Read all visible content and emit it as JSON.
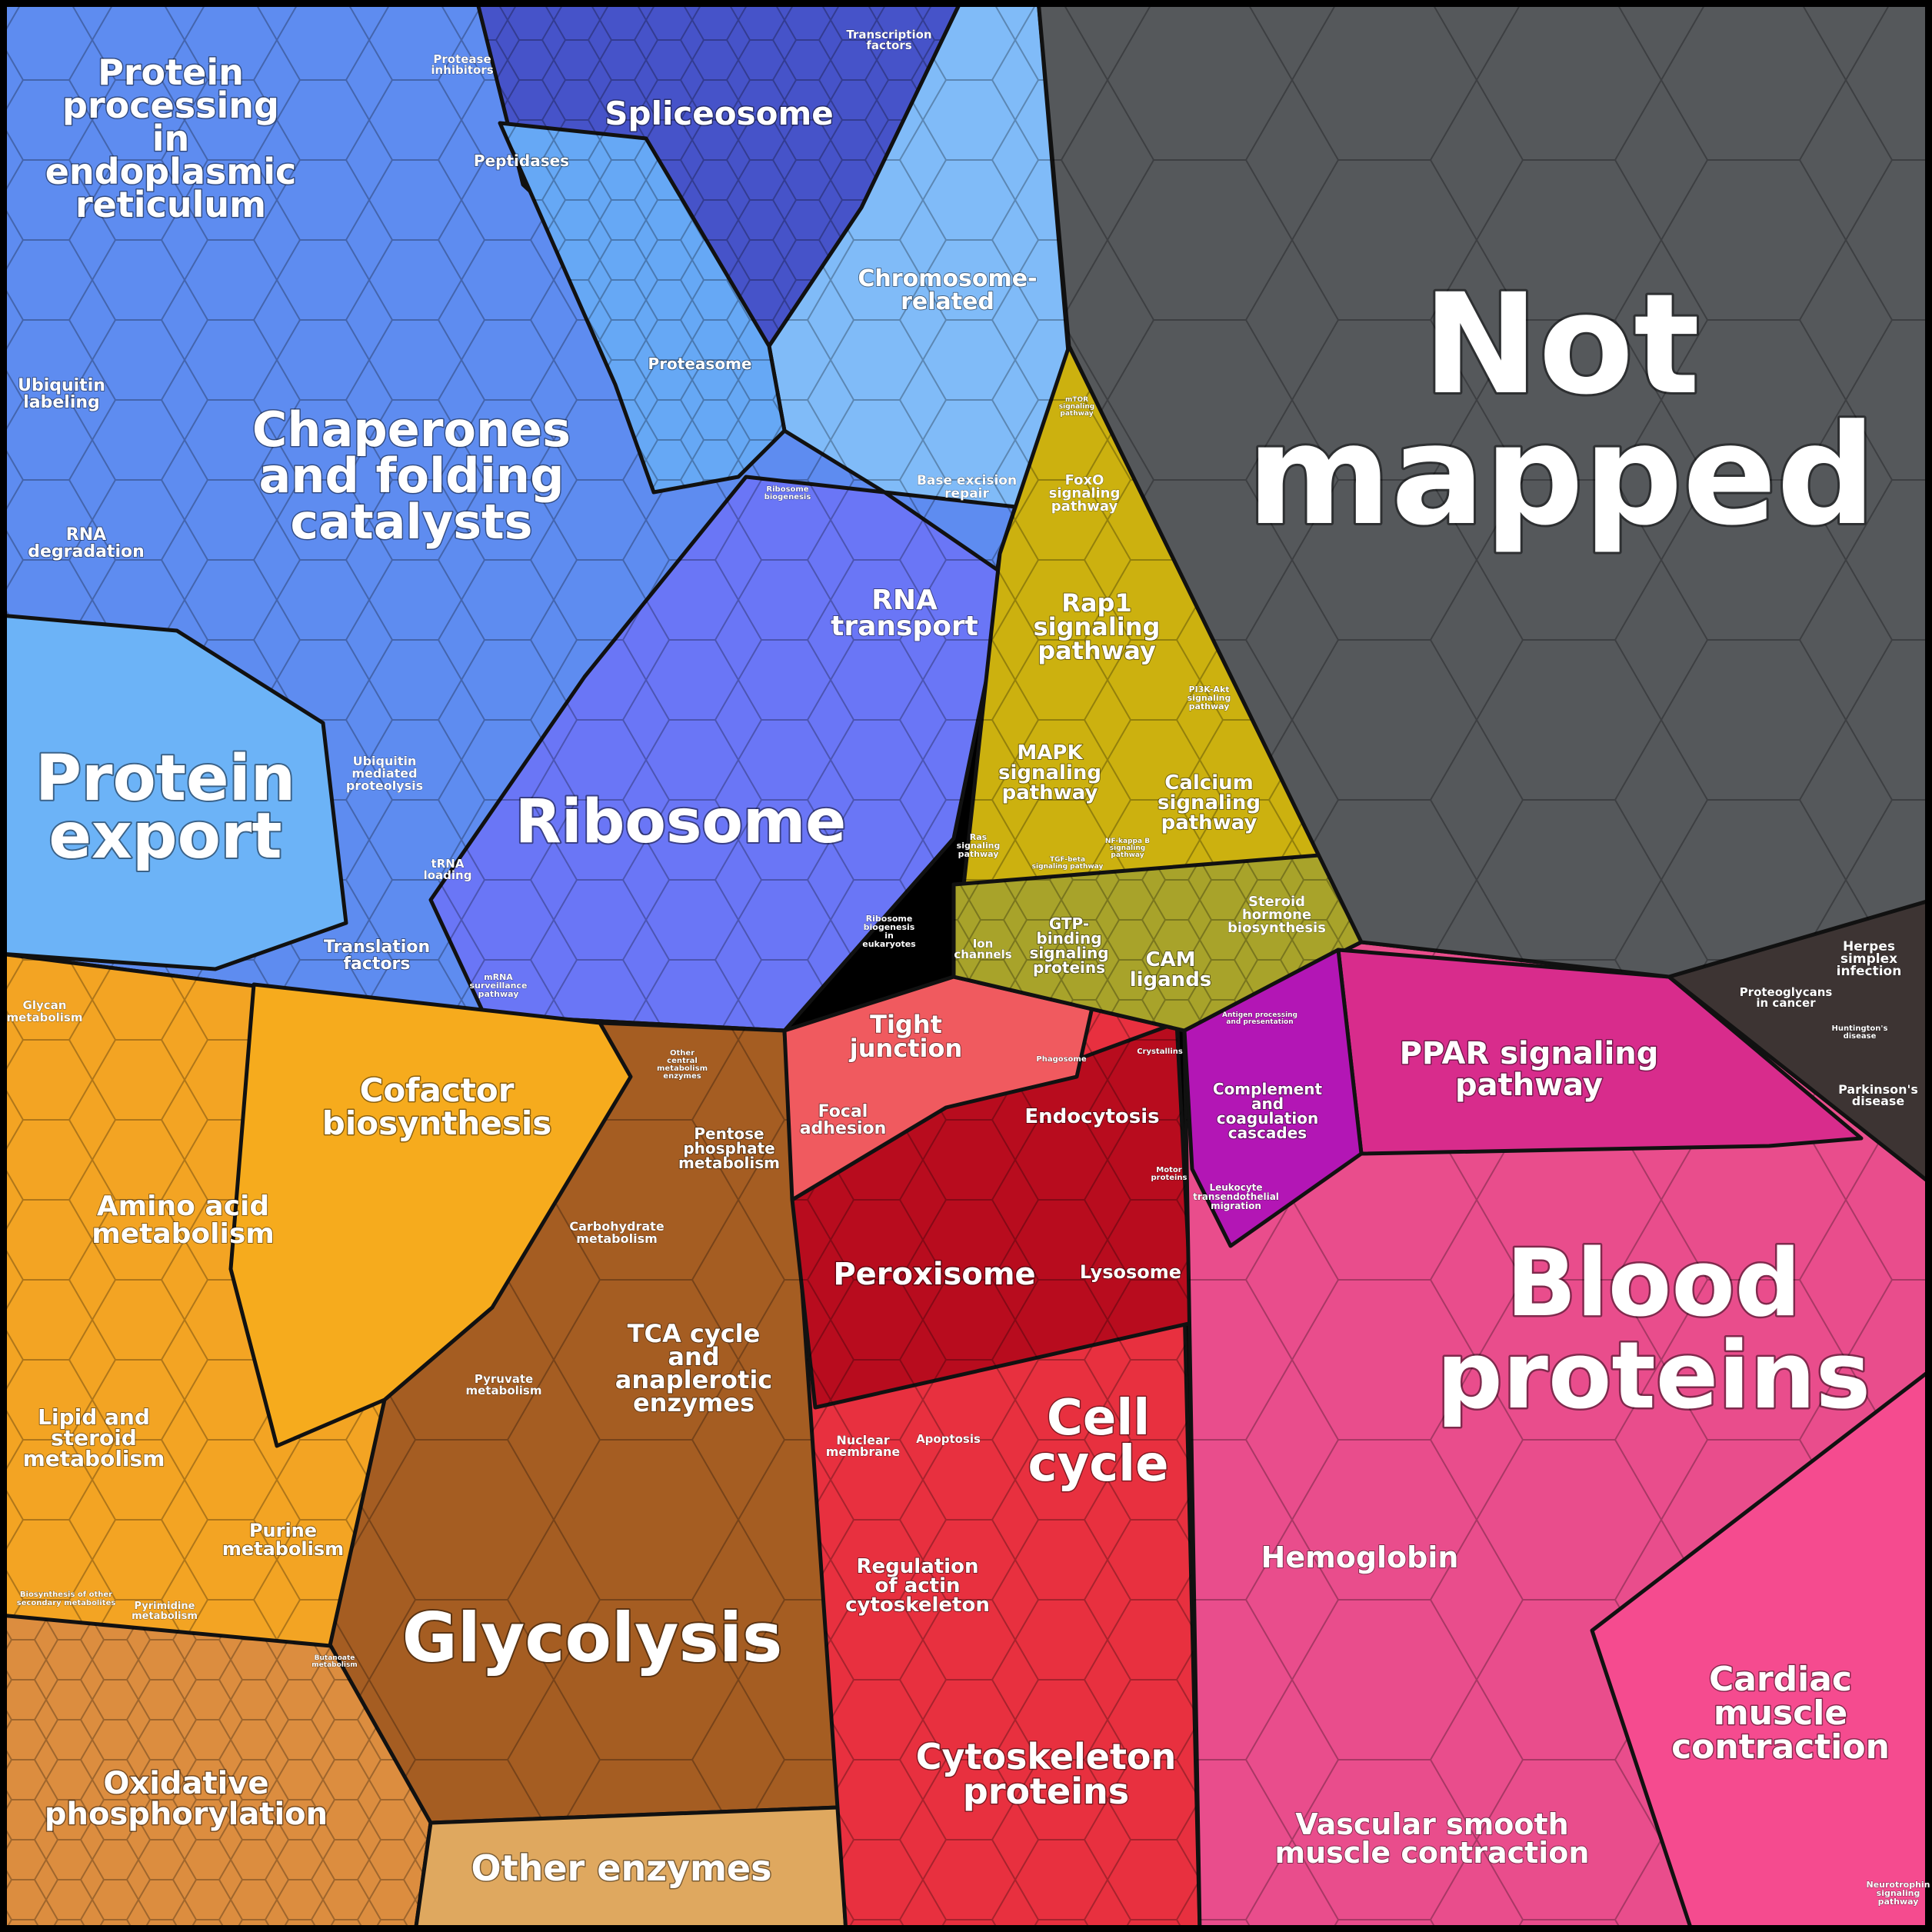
{
  "regions": [
    {
      "id": "genetic-information-processing",
      "color": "#5b86ee"
    },
    {
      "id": "metabolism",
      "color": "#e8a233"
    },
    {
      "id": "cellular-processes",
      "color": "#e23d48"
    },
    {
      "id": "signaling",
      "color": "#c9b312"
    },
    {
      "id": "organismal-systems",
      "color": "#e54a8a"
    },
    {
      "id": "human-diseases",
      "color": "#3c3434"
    },
    {
      "id": "not-mapped",
      "color": "#55585b"
    }
  ],
  "labels": {
    "not_mapped_1": "Not",
    "not_mapped_2": "mapped",
    "blood_1": "Blood",
    "blood_2": "proteins",
    "ribosome": "Ribosome",
    "glycolysis": "Glycolysis",
    "protein_export_1": "Protein",
    "protein_export_2": "export",
    "chaperones_1": "Chaperones",
    "chaperones_2": "and folding",
    "chaperones_3": "catalysts",
    "ppe_1": "Protein",
    "ppe_2": "processing",
    "ppe_3": "in",
    "ppe_4": "endoplasmic",
    "ppe_5": "reticulum",
    "spliceosome": "Spliceosome",
    "chromosome_1": "Chromosome-",
    "chromosome_2": "related",
    "rna_transport_1": "RNA",
    "rna_transport_2": "transport",
    "cell_cycle_1": "Cell",
    "cell_cycle_2": "cycle",
    "cytoskeleton_1": "Cytoskeleton",
    "cytoskeleton_2": "proteins",
    "cofactor_1": "Cofactor",
    "cofactor_2": "biosynthesis",
    "amino_acid_1": "Amino acid",
    "amino_acid_2": "metabolism",
    "oxphos_1": "Oxidative",
    "oxphos_2": "phosphorylation",
    "other_enzymes": "Other enzymes",
    "tca_1": "TCA cycle",
    "tca_2": "and",
    "tca_3": "anaplerotic",
    "tca_4": "enzymes",
    "peroxisome": "Peroxisome",
    "lysosome": "Lysosome",
    "endocytosis": "Endocytosis",
    "tight_junction_1": "Tight",
    "tight_junction_2": "junction",
    "focal_adhesion_1": "Focal",
    "focal_adhesion_2": "adhesion",
    "ppar_1": "PPAR signaling",
    "ppar_2": "pathway",
    "hemoglobin": "Hemoglobin",
    "cardiac_1": "Cardiac",
    "cardiac_2": "muscle",
    "cardiac_3": "contraction",
    "vascular_1": "Vascular smooth",
    "vascular_2": "muscle contraction",
    "rap1_1": "Rap1",
    "rap1_2": "signaling",
    "rap1_3": "pathway",
    "mapk_1": "MAPK",
    "mapk_2": "signaling",
    "mapk_3": "pathway",
    "calcium_1": "Calcium",
    "calcium_2": "signaling",
    "calcium_3": "pathway",
    "cam_1": "CAM",
    "cam_2": "ligands",
    "lipid_1": "Lipid and",
    "lipid_2": "steroid",
    "lipid_3": "metabolism",
    "purine_1": "Purine",
    "purine_2": "metabolism",
    "pentose_1": "Pentose",
    "pentose_2": "phosphate",
    "pentose_3": "metabolism",
    "carbohydrate_1": "Carbohydrate",
    "carbohydrate_2": "metabolism",
    "pyruvate_1": "Pyruvate",
    "pyruvate_2": "metabolism",
    "glycan_1": "Glycan",
    "glycan_2": "metabolism",
    "ubiquitin_labeling_1": "Ubiquitin",
    "ubiquitin_labeling_2": "labeling",
    "rna_degradation_1": "RNA",
    "rna_degradation_2": "degradation",
    "ubiquitin_proteolysis_1": "Ubiquitin",
    "ubiquitin_proteolysis_2": "mediated",
    "ubiquitin_proteolysis_3": "proteolysis",
    "translation_factors_1": "Translation",
    "translation_factors_2": "factors",
    "trna_loading_1": "tRNA",
    "trna_loading_2": "loading",
    "mrna_surveillance_1": "mRNA",
    "mrna_surveillance_2": "surveillance",
    "mrna_surveillance_3": "pathway",
    "proteasome": "Proteasome",
    "peptidases": "Peptidases",
    "protease_inhibitors_1": "Protease",
    "protease_inhibitors_2": "inhibitors",
    "transcription_factors_1": "Transcription",
    "transcription_factors_2": "factors",
    "base_excision_1": "Base excision",
    "base_excision_2": "repair",
    "ribosome_biogenesis_1": "Ribosome",
    "ribosome_biogenesis_2": "biogenesis",
    "ribosome_biogenesis_euk_1": "Ribosome",
    "ribosome_biogenesis_euk_2": "biogenesis",
    "ribosome_biogenesis_euk_3": "in",
    "ribosome_biogenesis_euk_4": "eukaryotes",
    "foxo_1": "FoxO",
    "foxo_2": "signaling",
    "foxo_3": "pathway",
    "pi3k_1": "PI3K-Akt",
    "pi3k_2": "signaling",
    "pi3k_3": "pathway",
    "ion_channels_1": "Ion",
    "ion_channels_2": "channels",
    "gtp_1": "GTP-",
    "gtp_2": "binding",
    "gtp_3": "signaling",
    "gtp_4": "proteins",
    "steroid_hormone_1": "Steroid",
    "steroid_hormone_2": "hormone",
    "steroid_hormone_3": "biosynthesis",
    "complement_1": "Complement",
    "complement_2": "and",
    "complement_3": "coagulation",
    "complement_4": "cascades",
    "leukocyte_1": "Leukocyte",
    "leukocyte_2": "transendothelial",
    "leukocyte_3": "migration",
    "herpes_1": "Herpes",
    "herpes_2": "simplex",
    "herpes_3": "infection",
    "proteoglycans_1": "Proteoglycans",
    "proteoglycans_2": "in cancer",
    "huntington_1": "Huntington's",
    "huntington_2": "disease",
    "parkinson_1": "Parkinson's",
    "parkinson_2": "disease",
    "nuclear_membrane_1": "Nuclear",
    "nuclear_membrane_2": "membrane",
    "apoptosis": "Apoptosis",
    "regulation_actin_1": "Regulation",
    "regulation_actin_2": "of actin",
    "regulation_actin_3": "cytoskeleton",
    "crystallins": "Crystallins",
    "phagosome": "Phagosome",
    "motor_1": "Motor",
    "motor_2": "proteins",
    "other_central_1": "Other",
    "other_central_2": "central",
    "other_central_3": "metabolism",
    "other_central_4": "enzymes",
    "pyrimidine_1": "Pyrimidine",
    "pyrimidine_2": "metabolism",
    "secondary_1": "Biosynthesis of other",
    "secondary_2": "secondary metabolites",
    "butanoate_1": "Butanoate",
    "butanoate_2": "metabolism",
    "neurotrophin_1": "Neurotrophin",
    "neurotrophin_2": "signaling",
    "neurotrophin_3": "pathway",
    "antigen_1": "Antigen processing",
    "antigen_2": "and presentation",
    "ras_1": "Ras",
    "ras_2": "signaling",
    "ras_3": "pathway",
    "tgf_1": "TGF-beta",
    "tgf_2": "signaling pathway",
    "nfkb_1": "NF-kappa B",
    "nfkb_2": "signaling",
    "nfkb_3": "pathway",
    "mtor_1": "mTOR",
    "mtor_2": "signaling",
    "mtor_3": "pathway"
  }
}
